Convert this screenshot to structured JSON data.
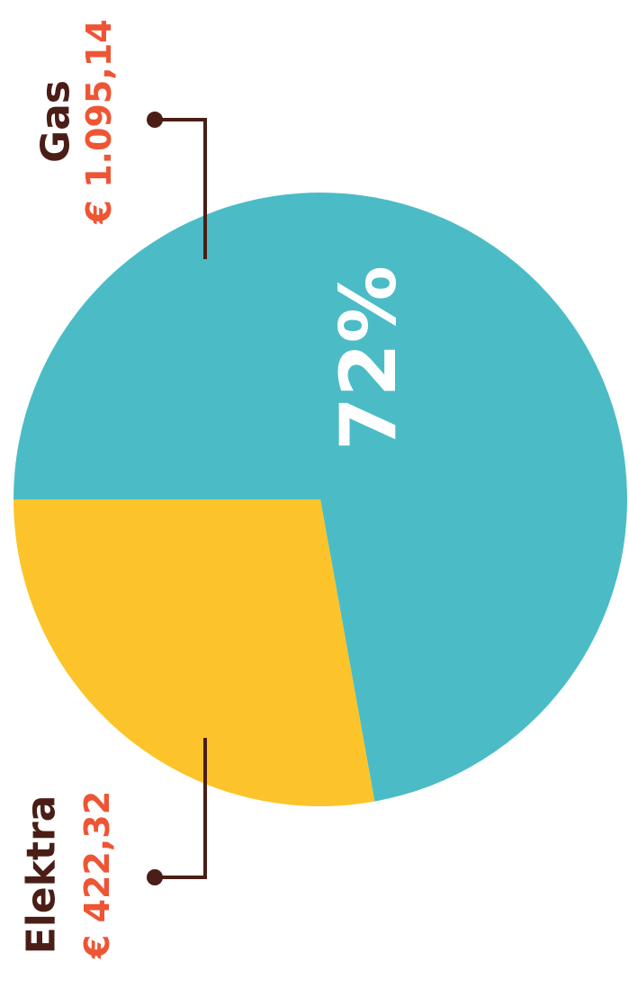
{
  "chart_data": {
    "type": "pie",
    "slices": [
      {
        "label": "Gas",
        "value_label": "€ 1.095,14",
        "value": 1095.14,
        "percent_label": "72%",
        "color": "#4bbcc6"
      },
      {
        "label": "Elektra",
        "value_label": "€ 422,32",
        "value": 422.32,
        "percent_label": "",
        "color": "#fcc42a"
      }
    ],
    "legend": "callout labels"
  },
  "colors": {
    "name_text": "#4a1e16",
    "value_text": "#ee5535",
    "leader_line": "#4a1e16",
    "percent_text": "#ffffff",
    "background": "#ffffff"
  }
}
